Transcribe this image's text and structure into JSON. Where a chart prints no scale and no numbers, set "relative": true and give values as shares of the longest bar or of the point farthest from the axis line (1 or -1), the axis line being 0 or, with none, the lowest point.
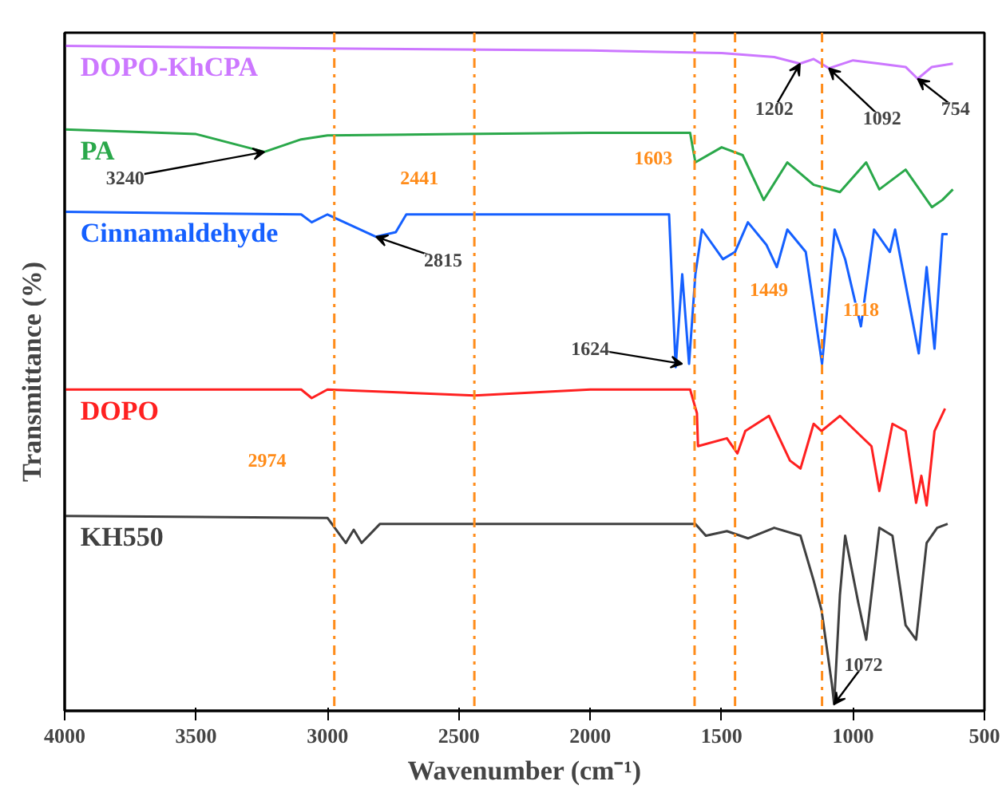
{
  "chart_data": {
    "type": "line",
    "relative": true,
    "xlabel": "Wavenumber (cm⁻¹)",
    "ylabel": "Transmittance (%)",
    "xlim": [
      4000,
      500
    ],
    "xticks": [
      4000,
      3500,
      3000,
      2500,
      2000,
      1500,
      1000,
      500
    ],
    "tick_labels": "x",
    "grid": false,
    "series": [
      {
        "name": "DOPO-KhCPA",
        "color": "#cc77ff",
        "x": [
          4000,
          3000,
          2000,
          1500,
          1300,
          1202,
          1150,
          1092,
          1000,
          900,
          800,
          754,
          700,
          620
        ],
        "values": [
          1.0,
          0.996,
          0.993,
          0.989,
          0.983,
          0.973,
          0.98,
          0.966,
          0.978,
          0.973,
          0.968,
          0.95,
          0.968,
          0.973
        ]
      },
      {
        "name": "PA",
        "color": "#2aa84a",
        "x": [
          4000,
          3500,
          3240,
          3100,
          3000,
          2500,
          2000,
          1620,
          1600,
          1500,
          1420,
          1340,
          1250,
          1150,
          1050,
          950,
          900,
          800,
          700,
          660,
          620
        ],
        "values": [
          0.873,
          0.866,
          0.839,
          0.858,
          0.864,
          0.866,
          0.868,
          0.868,
          0.823,
          0.846,
          0.834,
          0.766,
          0.823,
          0.789,
          0.778,
          0.823,
          0.782,
          0.812,
          0.755,
          0.766,
          0.782
        ]
      },
      {
        "name": "Cinnamaldehyde",
        "color": "#1560ff",
        "x": [
          4000,
          3100,
          3060,
          3000,
          2815,
          2740,
          2700,
          2000,
          1700,
          1675,
          1650,
          1624,
          1600,
          1575,
          1495,
          1449,
          1400,
          1330,
          1290,
          1250,
          1180,
          1118,
          1070,
          1030,
          970,
          920,
          860,
          840,
          750,
          720,
          690,
          660,
          640
        ],
        "values": [
          0.748,
          0.744,
          0.732,
          0.744,
          0.71,
          0.717,
          0.744,
          0.744,
          0.744,
          0.512,
          0.653,
          0.517,
          0.653,
          0.721,
          0.676,
          0.687,
          0.732,
          0.698,
          0.664,
          0.721,
          0.687,
          0.517,
          0.721,
          0.676,
          0.574,
          0.721,
          0.687,
          0.721,
          0.533,
          0.664,
          0.54,
          0.714,
          0.714
        ]
      },
      {
        "name": "DOPO",
        "color": "#ff2020",
        "x": [
          4000,
          3100,
          3060,
          3000,
          2441,
          2000,
          1620,
          1594,
          1590,
          1480,
          1440,
          1410,
          1320,
          1240,
          1200,
          1150,
          1120,
          1050,
          930,
          900,
          850,
          800,
          760,
          740,
          720,
          690,
          650
        ],
        "values": [
          0.478,
          0.478,
          0.465,
          0.478,
          0.469,
          0.478,
          0.478,
          0.442,
          0.392,
          0.404,
          0.381,
          0.415,
          0.438,
          0.37,
          0.358,
          0.426,
          0.415,
          0.438,
          0.392,
          0.324,
          0.426,
          0.415,
          0.306,
          0.347,
          0.302,
          0.415,
          0.449
        ]
      },
      {
        "name": "KH550",
        "color": "#404040",
        "x": [
          4000,
          3000,
          2930,
          2900,
          2870,
          2800,
          2000,
          1600,
          1560,
          1480,
          1400,
          1300,
          1200,
          1150,
          1120,
          1080,
          1072,
          1050,
          1030,
          980,
          950,
          900,
          850,
          800,
          760,
          720,
          680,
          640
        ],
        "values": [
          0.286,
          0.283,
          0.245,
          0.265,
          0.245,
          0.274,
          0.274,
          0.274,
          0.256,
          0.263,
          0.252,
          0.268,
          0.256,
          0.188,
          0.143,
          0.029,
          0.0,
          0.166,
          0.256,
          0.154,
          0.098,
          0.268,
          0.256,
          0.12,
          0.098,
          0.245,
          0.268,
          0.274
        ]
      }
    ],
    "ref_lines": [
      {
        "axis": "x",
        "value": 2974,
        "label": "2974",
        "color": "#ff8c1a"
      },
      {
        "axis": "x",
        "value": 2441,
        "label": "2441",
        "color": "#ff8c1a"
      },
      {
        "axis": "x",
        "value": 1603,
        "label": "1603",
        "color": "#ff8c1a"
      },
      {
        "axis": "x",
        "value": 1449,
        "label": "1449",
        "color": "#ff8c1a"
      },
      {
        "axis": "x",
        "value": 1118,
        "label": "1118",
        "color": "#ff8c1a"
      }
    ],
    "annotations": [
      {
        "text": "3240",
        "x": 3240,
        "y": 0.839
      },
      {
        "text": "2815",
        "x": 2815,
        "y": 0.71
      },
      {
        "text": "1624",
        "x": 1650,
        "y": 0.517
      },
      {
        "text": "1202",
        "x": 1202,
        "y": 0.973
      },
      {
        "text": "1092",
        "x": 1092,
        "y": 0.966
      },
      {
        "text": "754",
        "x": 754,
        "y": 0.95
      },
      {
        "text": "1072",
        "x": 1072,
        "y": 0.0
      }
    ]
  }
}
